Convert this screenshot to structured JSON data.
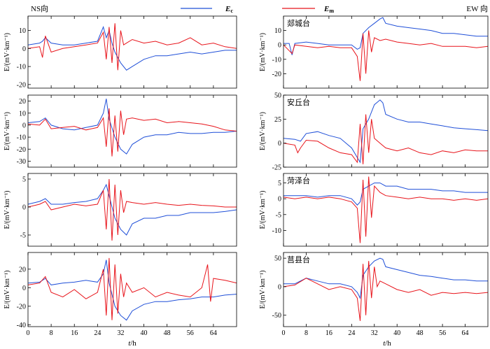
{
  "figure": {
    "left_header": "NS向",
    "right_header": "EW 向",
    "legend": {
      "ec_label": "E",
      "ec_sub": "c",
      "em_label": "E",
      "em_sub": "m",
      "ec_color": "#1f4fd8",
      "em_color": "#e8141b"
    },
    "x_axis_label_t": "t",
    "x_axis_label_unit": "/h",
    "y_axis_label": "E/(mV·km⁻¹)"
  },
  "chart_data": [
    {
      "type": "line",
      "panel": "NS-1",
      "station": "",
      "xlim": [
        0,
        72
      ],
      "ylim": [
        -22,
        18
      ],
      "yticks": [
        -20,
        -10,
        0,
        10
      ],
      "xticks": [
        0,
        8,
        16,
        24,
        32,
        40,
        48,
        56,
        64
      ],
      "series": [
        {
          "name": "Ec",
          "x": [
            0,
            4,
            5,
            6,
            8,
            12,
            16,
            20,
            24,
            26,
            27,
            28,
            29,
            30,
            32,
            34,
            36,
            40,
            44,
            48,
            52,
            56,
            60,
            64,
            68,
            72
          ],
          "y": [
            2,
            3,
            4,
            6,
            3,
            2,
            2,
            3,
            4,
            12,
            6,
            10,
            3,
            -2,
            -8,
            -12,
            -10,
            -6,
            -4,
            -4,
            -3,
            -2,
            -3,
            -2,
            -1,
            -1
          ]
        },
        {
          "name": "Em",
          "x": [
            0,
            4,
            5,
            6,
            8,
            12,
            16,
            20,
            24,
            26,
            27,
            28,
            29,
            30,
            31,
            32,
            33,
            34,
            36,
            40,
            44,
            48,
            52,
            56,
            60,
            64,
            68,
            72
          ],
          "y": [
            0,
            1,
            -5,
            7,
            -2,
            0,
            1,
            2,
            3,
            9,
            -6,
            12,
            -8,
            14,
            -12,
            10,
            2,
            3,
            5,
            3,
            4,
            2,
            3,
            6,
            2,
            3,
            1,
            0
          ]
        }
      ]
    },
    {
      "type": "line",
      "panel": "NS-2",
      "station": "",
      "xlim": [
        0,
        72
      ],
      "ylim": [
        -35,
        25
      ],
      "yticks": [
        -30,
        -20,
        -10,
        0,
        10,
        20
      ],
      "xticks": [
        0,
        8,
        16,
        24,
        32,
        40,
        48,
        56,
        64
      ],
      "series": [
        {
          "name": "Ec",
          "x": [
            0,
            4,
            6,
            8,
            12,
            16,
            20,
            24,
            26,
            27,
            28,
            30,
            32,
            34,
            36,
            40,
            44,
            48,
            52,
            56,
            60,
            64,
            68,
            72
          ],
          "y": [
            2,
            3,
            6,
            0,
            -3,
            -4,
            -2,
            0,
            10,
            22,
            5,
            -10,
            -20,
            -24,
            -16,
            -10,
            -8,
            -8,
            -6,
            -7,
            -7,
            -6,
            -6,
            -5
          ]
        },
        {
          "name": "Em",
          "x": [
            0,
            4,
            6,
            8,
            12,
            16,
            20,
            24,
            26,
            27,
            28,
            29,
            30,
            31,
            32,
            33,
            34,
            36,
            40,
            44,
            48,
            52,
            56,
            60,
            64,
            68,
            72
          ],
          "y": [
            1,
            0,
            5,
            -3,
            -2,
            -1,
            -4,
            -2,
            6,
            -18,
            14,
            -26,
            8,
            -22,
            12,
            -8,
            5,
            6,
            4,
            5,
            2,
            3,
            2,
            1,
            -1,
            -4,
            -5
          ]
        }
      ]
    },
    {
      "type": "line",
      "panel": "NS-3",
      "station": "",
      "xlim": [
        0,
        72
      ],
      "ylim": [
        -7,
        6
      ],
      "yticks": [
        -5,
        0,
        5
      ],
      "xticks": [
        0,
        8,
        16,
        24,
        32,
        40,
        48,
        56,
        64
      ],
      "series": [
        {
          "name": "Ec",
          "x": [
            0,
            4,
            6,
            8,
            12,
            16,
            20,
            24,
            26,
            27,
            28,
            30,
            32,
            34,
            36,
            40,
            44,
            48,
            52,
            56,
            60,
            64,
            68,
            72
          ],
          "y": [
            0.5,
            1,
            1.5,
            0.5,
            0.5,
            0.8,
            1,
            1.5,
            3,
            4,
            2,
            -2,
            -4,
            -5,
            -3,
            -2,
            -2,
            -1.5,
            -1.5,
            -1,
            -1,
            -1,
            -0.8,
            -0.5
          ]
        },
        {
          "name": "Em",
          "x": [
            0,
            4,
            6,
            8,
            12,
            16,
            20,
            24,
            26,
            27,
            28,
            29,
            30,
            31,
            32,
            33,
            34,
            36,
            40,
            44,
            48,
            52,
            56,
            60,
            64,
            68,
            72
          ],
          "y": [
            0,
            0.5,
            1,
            -0.5,
            0,
            0.5,
            0.2,
            0.5,
            3,
            -4,
            5,
            -6,
            4,
            -5,
            3,
            -1,
            1,
            0.8,
            0.5,
            0.8,
            0.5,
            0.3,
            0.5,
            0.3,
            0.2,
            0,
            0
          ]
        }
      ]
    },
    {
      "type": "line",
      "panel": "NS-4",
      "station": "",
      "xlim": [
        0,
        72
      ],
      "ylim": [
        -42,
        38
      ],
      "yticks": [
        -40,
        -20,
        0,
        20
      ],
      "xticks": [
        0,
        8,
        16,
        24,
        32,
        40,
        48,
        56,
        64
      ],
      "series": [
        {
          "name": "Ec",
          "x": [
            0,
            4,
            6,
            8,
            12,
            16,
            20,
            24,
            26,
            27,
            28,
            30,
            32,
            34,
            36,
            40,
            44,
            48,
            52,
            56,
            60,
            64,
            68,
            72
          ],
          "y": [
            5,
            6,
            10,
            3,
            5,
            6,
            8,
            6,
            15,
            30,
            5,
            -20,
            -30,
            -35,
            -25,
            -18,
            -15,
            -15,
            -13,
            -12,
            -10,
            -10,
            -8,
            -7
          ]
        },
        {
          "name": "Em",
          "x": [
            0,
            4,
            6,
            8,
            12,
            16,
            20,
            24,
            26,
            27,
            28,
            29,
            30,
            31,
            32,
            33,
            34,
            36,
            40,
            44,
            48,
            52,
            56,
            60,
            62,
            63,
            64,
            68,
            72
          ],
          "y": [
            3,
            5,
            12,
            -5,
            -10,
            -2,
            -12,
            -5,
            20,
            -30,
            32,
            -35,
            25,
            -28,
            15,
            -10,
            5,
            -5,
            0,
            -10,
            -5,
            -8,
            -10,
            0,
            25,
            -15,
            10,
            8,
            5
          ]
        }
      ]
    },
    {
      "type": "line",
      "panel": "EW-1",
      "station": "郯城台",
      "xlim": [
        0,
        72
      ],
      "ylim": [
        -30,
        20
      ],
      "yticks": [
        -20,
        -10,
        0,
        10
      ],
      "xticks": [
        0,
        8,
        16,
        24,
        32,
        40,
        48,
        56,
        64
      ],
      "series": [
        {
          "name": "Ec",
          "x": [
            0,
            2,
            3,
            4,
            8,
            12,
            16,
            20,
            24,
            26,
            27,
            28,
            30,
            32,
            34,
            35,
            36,
            40,
            44,
            48,
            52,
            56,
            60,
            64,
            68,
            72
          ],
          "y": [
            1,
            1,
            -7,
            1,
            2,
            1,
            0,
            0,
            0,
            -3,
            -2,
            8,
            12,
            15,
            18,
            19,
            15,
            13,
            12,
            11,
            10,
            8,
            8,
            7,
            6,
            6
          ]
        },
        {
          "name": "Em",
          "x": [
            0,
            3,
            4,
            8,
            12,
            16,
            20,
            24,
            26,
            27,
            28,
            29,
            30,
            31,
            32,
            34,
            36,
            40,
            44,
            48,
            52,
            56,
            60,
            64,
            68,
            72
          ],
          "y": [
            0,
            -6,
            0,
            -1,
            -2,
            -1,
            -2,
            -2,
            -8,
            -25,
            8,
            -20,
            10,
            -5,
            5,
            3,
            4,
            2,
            1,
            0,
            1,
            -1,
            -1,
            -1,
            -2,
            -1
          ]
        }
      ]
    },
    {
      "type": "line",
      "panel": "EW-2",
      "station": "安丘台",
      "xlim": [
        0,
        72
      ],
      "ylim": [
        -25,
        50
      ],
      "yticks": [
        -25,
        0,
        25,
        50
      ],
      "xticks": [
        0,
        8,
        16,
        24,
        32,
        40,
        48,
        56,
        64
      ],
      "series": [
        {
          "name": "Ec",
          "x": [
            0,
            4,
            6,
            8,
            12,
            16,
            20,
            24,
            26,
            27,
            28,
            30,
            32,
            34,
            35,
            36,
            40,
            44,
            48,
            52,
            56,
            60,
            64,
            68,
            72
          ],
          "y": [
            5,
            4,
            2,
            10,
            12,
            8,
            5,
            -5,
            -15,
            -20,
            15,
            25,
            40,
            45,
            42,
            30,
            25,
            22,
            22,
            20,
            18,
            16,
            15,
            14,
            13
          ]
        },
        {
          "name": "Em",
          "x": [
            0,
            4,
            5,
            6,
            8,
            12,
            16,
            20,
            24,
            26,
            27,
            28,
            29,
            30,
            31,
            32,
            34,
            36,
            40,
            44,
            48,
            52,
            56,
            60,
            64,
            68,
            72
          ],
          "y": [
            0,
            -2,
            -10,
            -5,
            3,
            2,
            -5,
            -10,
            -12,
            -20,
            20,
            -22,
            30,
            -10,
            25,
            5,
            0,
            -5,
            -8,
            -5,
            -10,
            -12,
            -8,
            -10,
            -7,
            -8,
            -8
          ]
        }
      ]
    },
    {
      "type": "line",
      "panel": "EW-3",
      "station": "菏泽台",
      "xlim": [
        0,
        72
      ],
      "ylim": [
        -15,
        8
      ],
      "yticks": [
        -10,
        -5,
        0,
        5
      ],
      "xticks": [
        0,
        8,
        16,
        24,
        32,
        40,
        48,
        56,
        64
      ],
      "series": [
        {
          "name": "Ec",
          "x": [
            0,
            4,
            8,
            12,
            16,
            20,
            24,
            26,
            27,
            28,
            30,
            32,
            34,
            36,
            40,
            44,
            48,
            52,
            56,
            60,
            64,
            68,
            72
          ],
          "y": [
            1,
            1,
            1,
            0.5,
            1,
            1,
            0,
            -2,
            -1,
            3,
            4,
            5,
            5,
            4,
            4,
            3,
            3,
            3,
            2.5,
            2.5,
            2,
            2,
            2
          ]
        },
        {
          "name": "Em",
          "x": [
            0,
            4,
            8,
            12,
            16,
            20,
            24,
            26,
            27,
            28,
            29,
            30,
            31,
            32,
            34,
            36,
            40,
            44,
            48,
            52,
            56,
            60,
            64,
            68,
            72
          ],
          "y": [
            0.5,
            0,
            0.5,
            0,
            0.5,
            0,
            -1,
            -3,
            -14,
            6,
            -12,
            7,
            -6,
            4,
            2,
            1,
            0.5,
            0,
            0.5,
            0,
            0,
            -0.5,
            0,
            -0.5,
            0
          ]
        }
      ]
    },
    {
      "type": "line",
      "panel": "EW-4",
      "station": "莒县台",
      "xlim": [
        0,
        72
      ],
      "ylim": [
        -70,
        60
      ],
      "yticks": [
        -50,
        0,
        50
      ],
      "xticks": [
        0,
        8,
        16,
        24,
        32,
        40,
        48,
        56,
        64
      ],
      "series": [
        {
          "name": "Ec",
          "x": [
            0,
            4,
            8,
            12,
            16,
            20,
            24,
            26,
            27,
            28,
            30,
            32,
            34,
            35,
            36,
            40,
            44,
            48,
            52,
            56,
            60,
            64,
            68,
            72
          ],
          "y": [
            5,
            5,
            15,
            10,
            5,
            5,
            0,
            -10,
            -20,
            20,
            35,
            45,
            50,
            48,
            35,
            30,
            25,
            20,
            18,
            15,
            12,
            12,
            10,
            10
          ]
        },
        {
          "name": "Em",
          "x": [
            0,
            4,
            8,
            12,
            16,
            20,
            24,
            26,
            27,
            28,
            29,
            30,
            31,
            32,
            33,
            34,
            36,
            40,
            44,
            48,
            52,
            56,
            60,
            64,
            68,
            72
          ],
          "y": [
            0,
            3,
            15,
            5,
            -5,
            0,
            -5,
            -20,
            -60,
            40,
            -50,
            45,
            -20,
            35,
            0,
            10,
            5,
            -5,
            -10,
            -5,
            -15,
            -10,
            -12,
            -10,
            -12,
            -10
          ]
        }
      ]
    }
  ]
}
